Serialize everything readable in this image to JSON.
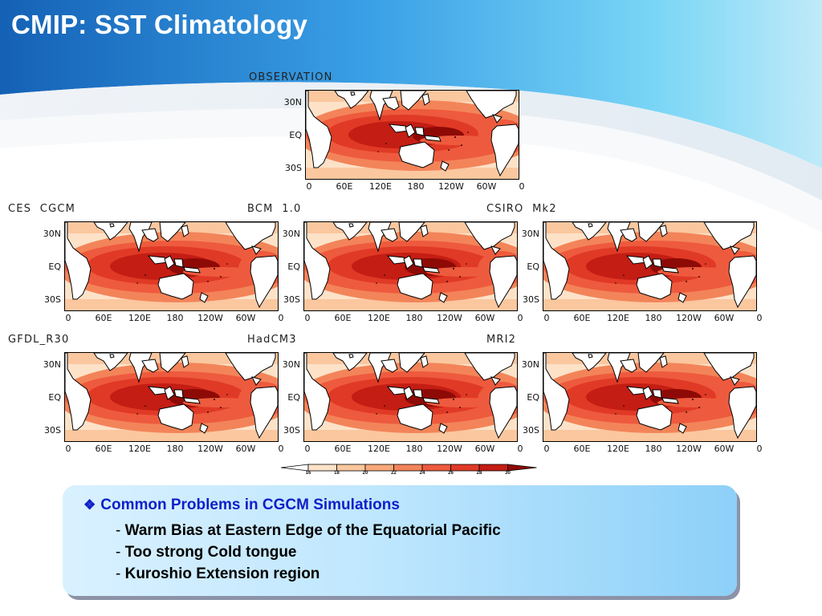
{
  "slide": {
    "title": "CMIP: SST Climatology"
  },
  "panels": [
    {
      "title": "OBSERVATION"
    },
    {
      "title": "CES  CGCM"
    },
    {
      "title": "BCM  1.0"
    },
    {
      "title": "CSIRO  Mk2"
    },
    {
      "title": "GFDL_R30"
    },
    {
      "title": "HadCM3"
    },
    {
      "title": "MRI2"
    }
  ],
  "map_axes": {
    "lat_labels": [
      "30N",
      "EQ",
      "30S"
    ],
    "lon_labels": [
      "0",
      "60E",
      "120E",
      "180",
      "120W",
      "60W",
      "0"
    ]
  },
  "colorbar": {
    "labels": [
      "16",
      "18",
      "20",
      "22",
      "24",
      "26",
      "28",
      "30"
    ],
    "colors": [
      "#ffffff",
      "#fde2c8",
      "#fbc79f",
      "#f8a878",
      "#f38459",
      "#ee5a3d",
      "#e03a26",
      "#c41d14",
      "#8e0a06"
    ]
  },
  "colors": {
    "title_banner": "#1a78cc",
    "heading": "#1020c8"
  },
  "notes": {
    "heading_icon": "diamond-bullet-icon",
    "heading": "Common Problems in CGCM Simulations",
    "items": [
      "Warm Bias at Eastern Edge of the Equatorial Pacific",
      "Too strong Cold tongue",
      "Kuroshio Extension region"
    ]
  }
}
